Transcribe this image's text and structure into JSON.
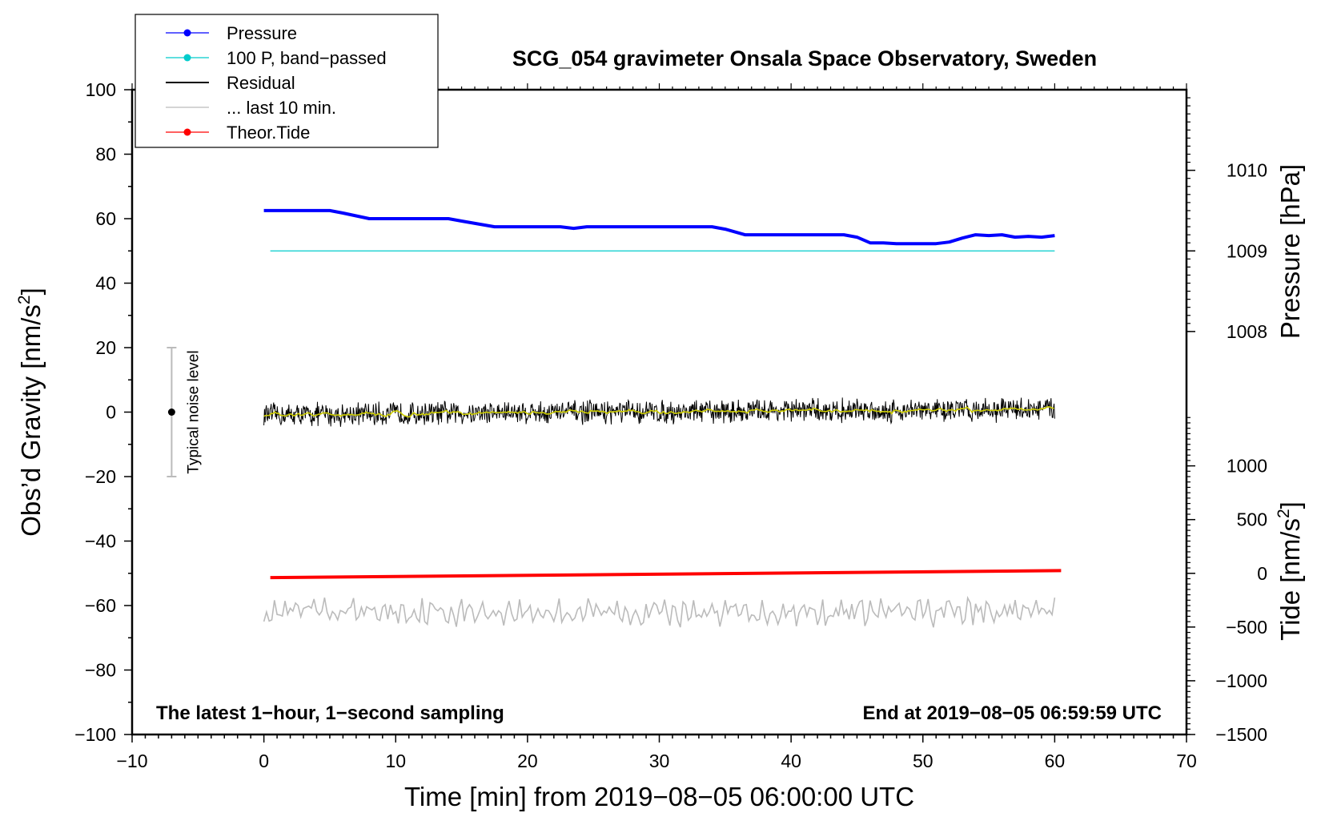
{
  "chart_data": {
    "type": "line",
    "title": "SCG_054 gravimeter Onsala Space Observatory, Sweden",
    "xlabel": "Time [min] from 2019−08−05 06:00:00 UTC",
    "ylabel": "Obs’d Gravity [nm/s²]",
    "ylabel_parts": [
      "Obs’d Gravity [nm/s",
      "2",
      "]"
    ],
    "xlim": [
      -10,
      70
    ],
    "ylim": [
      -100,
      100
    ],
    "x_ticks": [
      -10,
      0,
      10,
      20,
      30,
      40,
      50,
      60,
      70
    ],
    "x_tick_labels": [
      "−10",
      "0",
      "10",
      "20",
      "30",
      "40",
      "50",
      "60",
      "70"
    ],
    "y_ticks": [
      -100,
      -80,
      -60,
      -40,
      -20,
      0,
      20,
      40,
      60,
      80,
      100
    ],
    "y_tick_labels": [
      "−100",
      "−80",
      "−60",
      "−40",
      "−20",
      "0",
      "20",
      "40",
      "60",
      "80",
      "100"
    ],
    "right_axes": [
      {
        "label": "Pressure [hPa]",
        "label_parts": [
          "Pressure [hPa]"
        ],
        "ticks": [
          1008,
          1009,
          1010
        ],
        "tick_labels": [
          "1008",
          "1009",
          "1010"
        ],
        "gravity_at_tick0": 25,
        "gravity_per_unit": 25
      },
      {
        "label": "Tide [nm/s²]",
        "label_parts": [
          "Tide [nm/s",
          "2",
          "]"
        ],
        "ticks": [
          -1500,
          -1000,
          -500,
          0,
          500,
          1000
        ],
        "tick_labels": [
          "−1500",
          "−1000",
          "−500",
          "0",
          "500",
          "1000"
        ],
        "gravity_at_tick0": -100,
        "gravity_per_unit": 0.03333
      }
    ],
    "legend": {
      "position": "top-left",
      "entries": [
        {
          "label": "Pressure",
          "color": "#0000ff",
          "marker": true
        },
        {
          "label": "100 P, band−passed",
          "color": "#00cccc",
          "marker": true
        },
        {
          "label": "Residual",
          "color": "#000000",
          "marker": false
        },
        {
          "label": "... last 10 min.",
          "color": "#bbbbbb",
          "marker": false
        },
        {
          "label": "Theor.Tide",
          "color": "#ff0000",
          "marker": true
        }
      ]
    },
    "series": [
      {
        "name": "Pressure",
        "color": "#0000ff",
        "units": "hPa",
        "x": [
          0,
          5,
          6,
          8,
          10,
          14,
          15,
          17.5,
          22.5,
          23.5,
          24.5,
          34,
          35,
          36.5,
          44,
          45,
          46,
          47,
          48,
          51,
          52,
          53,
          54,
          55,
          56,
          57,
          58,
          59,
          60
        ],
        "values": [
          1009.5,
          1009.5,
          1009.47,
          1009.4,
          1009.4,
          1009.4,
          1009.37,
          1009.3,
          1009.3,
          1009.28,
          1009.3,
          1009.3,
          1009.27,
          1009.2,
          1009.2,
          1009.17,
          1009.1,
          1009.1,
          1009.09,
          1009.09,
          1009.11,
          1009.16,
          1009.2,
          1009.19,
          1009.2,
          1009.17,
          1009.18,
          1009.17,
          1009.19
        ]
      },
      {
        "name": "100 P, band−passed",
        "color": "#00cccc",
        "x": [
          0,
          60
        ],
        "values": [
          50,
          50
        ]
      },
      {
        "name": "Residual",
        "color": "#000000",
        "x_range": [
          0,
          60
        ],
        "mean_x": [
          0,
          10,
          20,
          30,
          40,
          50,
          60
        ],
        "mean_values": [
          -1.0,
          -0.5,
          0.0,
          0.0,
          0.5,
          0.5,
          1.0
        ],
        "amplitude": 3.5,
        "smoothed_color": "#cccc00"
      },
      {
        "name": "... last 10 min.",
        "color": "#bbbbbb",
        "x_range": [
          0,
          60
        ],
        "baseline": -62,
        "amplitude": 3
      },
      {
        "name": "Theor.Tide",
        "color": "#ff0000",
        "units": "nm/s²",
        "x": [
          0,
          60
        ],
        "values": [
          -40,
          25
        ]
      }
    ],
    "noise_bar": {
      "x": -7,
      "low": -20,
      "high": 20,
      "center": 0,
      "label": "Typical noise level"
    },
    "annotations": [
      {
        "text": "The latest 1−hour, 1−second sampling",
        "position": "bottom-left"
      },
      {
        "text": "End at 2019−08−05 06:59:59 UTC",
        "position": "bottom-right"
      }
    ]
  }
}
